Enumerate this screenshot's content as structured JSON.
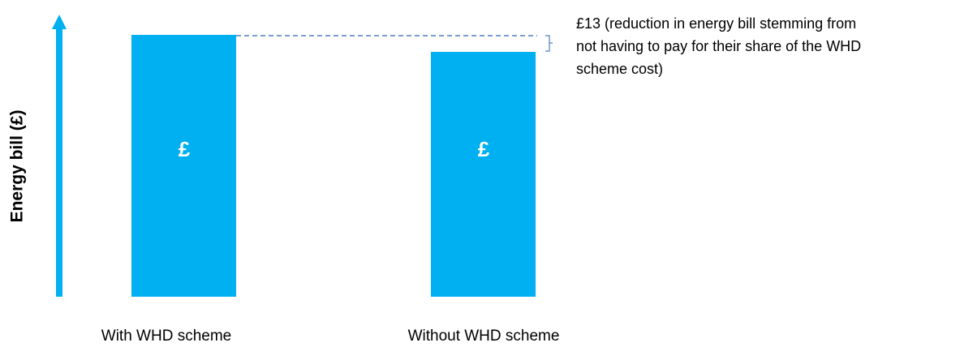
{
  "y_axis_label": "Energy bill (£)",
  "bars": [
    {
      "symbol": "£",
      "label": "With WHD scheme"
    },
    {
      "symbol": "£",
      "label": "Without WHD scheme"
    }
  ],
  "annotation": {
    "lines": [
      "£13 (reduction in energy bill stemming from",
      "not having to pay for their share of the WHD",
      "scheme cost)"
    ]
  }
}
